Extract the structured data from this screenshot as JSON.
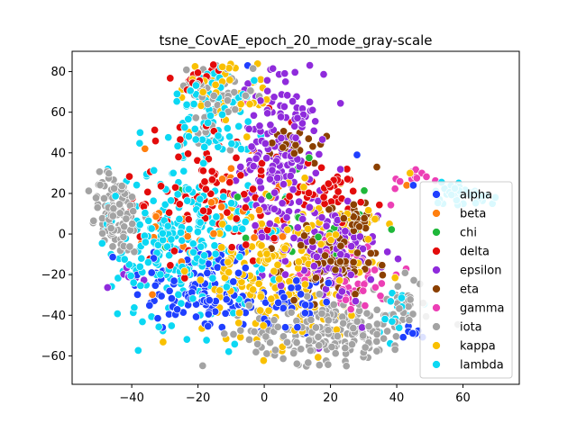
{
  "chart_data": {
    "type": "scatter",
    "title": "tsne_CovAE_epoch_20_mode_gray-scale",
    "xlabel": "",
    "ylabel": "",
    "xlim": [
      -58,
      77
    ],
    "ylim": [
      -74,
      90
    ],
    "xticks": [
      -40,
      -20,
      0,
      20,
      40,
      60
    ],
    "yticks": [
      -60,
      -40,
      -20,
      0,
      20,
      40,
      60,
      80
    ],
    "xtick_labels": [
      "−40",
      "−20",
      "0",
      "20",
      "40",
      "60"
    ],
    "ytick_labels": [
      "−60",
      "−40",
      "−20",
      "0",
      "20",
      "40",
      "60",
      "80"
    ],
    "grid": false,
    "legend_position": "bottom-right",
    "series": [
      {
        "name": "alpha",
        "color": "#1f3fff",
        "clusters": [
          {
            "cx": -20,
            "cy": -25,
            "sx": 10,
            "sy": 12,
            "n": 120
          },
          {
            "cx": 5,
            "cy": -35,
            "sx": 10,
            "sy": 8,
            "n": 60
          },
          {
            "cx": 45,
            "cy": -48,
            "sx": 2,
            "sy": 2,
            "n": 8
          }
        ],
        "points": [
          [
            28,
            39
          ],
          [
            -5,
            83
          ],
          [
            45,
            24
          ]
        ]
      },
      {
        "name": "beta",
        "color": "#ff7f0e",
        "clusters": [
          {
            "cx": -15,
            "cy": 5,
            "sx": 12,
            "sy": 15,
            "n": 40
          }
        ],
        "points": [
          [
            -36,
            42
          ],
          [
            43,
            24
          ]
        ]
      },
      {
        "name": "chi",
        "color": "#1fb83a",
        "clusters": [
          {
            "cx": 5,
            "cy": 5,
            "sx": 14,
            "sy": 14,
            "n": 30
          }
        ],
        "points": [
          [
            10,
            32
          ]
        ]
      },
      {
        "name": "delta",
        "color": "#e30b0b",
        "clusters": [
          {
            "cx": -15,
            "cy": 20,
            "sx": 12,
            "sy": 18,
            "n": 110
          },
          {
            "cx": 18,
            "cy": 20,
            "sx": 6,
            "sy": 5,
            "n": 40
          },
          {
            "cx": -20,
            "cy": 78,
            "sx": 4,
            "sy": 3,
            "n": 15
          }
        ],
        "points": [
          [
            25,
            32
          ]
        ]
      },
      {
        "name": "epsilon",
        "color": "#8f2bdc",
        "clusters": [
          {
            "cx": 5,
            "cy": 35,
            "sx": 6,
            "sy": 22,
            "n": 200
          },
          {
            "cx": 20,
            "cy": -10,
            "sx": 7,
            "sy": 12,
            "n": 120
          },
          {
            "cx": -42,
            "cy": -20,
            "sx": 3,
            "sy": 3,
            "n": 6
          }
        ],
        "points": []
      },
      {
        "name": "eta",
        "color": "#8b4000",
        "clusters": [
          {
            "cx": 20,
            "cy": -15,
            "sx": 7,
            "sy": 8,
            "n": 90
          },
          {
            "cx": 27,
            "cy": 8,
            "sx": 4,
            "sy": 4,
            "n": 30
          },
          {
            "cx": 10,
            "cy": 45,
            "sx": 4,
            "sy": 5,
            "n": 20
          }
        ],
        "points": [
          [
            34,
            33
          ]
        ]
      },
      {
        "name": "gamma",
        "color": "#ec3fb5",
        "clusters": [
          {
            "cx": 25,
            "cy": -20,
            "sx": 8,
            "sy": 10,
            "n": 60
          },
          {
            "cx": 45,
            "cy": 27,
            "sx": 3,
            "sy": 3,
            "n": 12
          }
        ],
        "points": [
          [
            -5,
            65
          ]
        ]
      },
      {
        "name": "iota",
        "color": "#a3a3a3",
        "clusters": [
          {
            "cx": -45,
            "cy": 10,
            "sx": 4,
            "sy": 10,
            "n": 110
          },
          {
            "cx": 20,
            "cy": -48,
            "sx": 12,
            "sy": 8,
            "n": 220
          },
          {
            "cx": -15,
            "cy": 68,
            "sx": 6,
            "sy": 10,
            "n": 60
          },
          {
            "cx": 42,
            "cy": -33,
            "sx": 3,
            "sy": 6,
            "n": 25
          }
        ],
        "points": []
      },
      {
        "name": "kappa",
        "color": "#f9c000",
        "clusters": [
          {
            "cx": 5,
            "cy": -20,
            "sx": 12,
            "sy": 18,
            "n": 220
          },
          {
            "cx": -10,
            "cy": 70,
            "sx": 8,
            "sy": 9,
            "n": 50
          },
          {
            "cx": 25,
            "cy": 5,
            "sx": 5,
            "sy": 4,
            "n": 30
          }
        ],
        "points": [
          [
            44,
            30
          ]
        ]
      },
      {
        "name": "lambda",
        "color": "#0bd8f3",
        "clusters": [
          {
            "cx": -25,
            "cy": -5,
            "sx": 11,
            "sy": 20,
            "n": 260
          },
          {
            "cx": -15,
            "cy": 60,
            "sx": 6,
            "sy": 15,
            "n": 90
          },
          {
            "cx": 60,
            "cy": 20,
            "sx": 5,
            "sy": 3,
            "n": 45
          },
          {
            "cx": 40,
            "cy": -38,
            "sx": 3,
            "sy": 6,
            "n": 20
          }
        ],
        "points": []
      }
    ]
  }
}
